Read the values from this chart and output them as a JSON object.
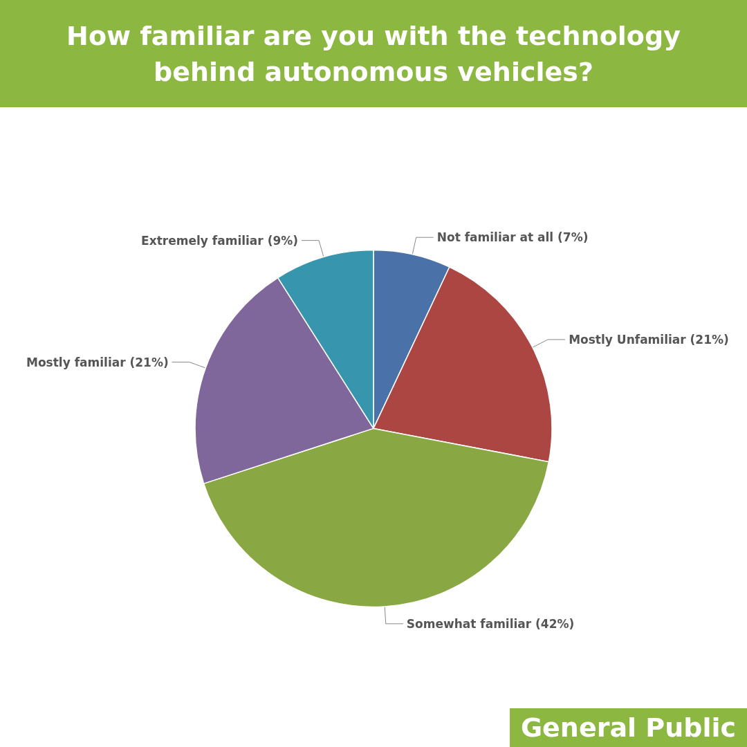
{
  "chart_data": {
    "type": "pie",
    "title": "How familiar are you with the technology behind autonomous vehicles?",
    "categories": [
      "Not familiar at all",
      "Mostly Unfamiliar",
      "Somewhat familiar",
      "Mostly familiar",
      "Extremely familiar"
    ],
    "values": [
      7,
      21,
      42,
      21,
      9
    ],
    "value_labels": [
      "(7%)",
      "(21%)",
      "(42%)",
      "(21%)",
      "(9%)"
    ],
    "colors": [
      "#4a72a8",
      "#ab4642",
      "#89a843",
      "#80679b",
      "#3796ad"
    ],
    "annotations": [
      "General Public"
    ],
    "legend": false
  }
}
